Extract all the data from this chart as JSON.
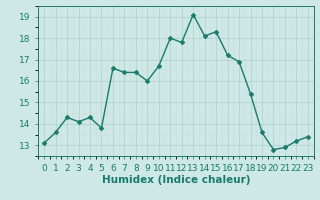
{
  "x": [
    0,
    1,
    2,
    3,
    4,
    5,
    6,
    7,
    8,
    9,
    10,
    11,
    12,
    13,
    14,
    15,
    16,
    17,
    18,
    19,
    20,
    21,
    22,
    23
  ],
  "y": [
    13.1,
    13.6,
    14.3,
    14.1,
    14.3,
    13.8,
    16.6,
    16.4,
    16.4,
    16.0,
    16.7,
    18.0,
    17.8,
    19.1,
    18.1,
    18.3,
    17.2,
    16.9,
    15.4,
    13.6,
    12.8,
    12.9,
    13.2,
    13.4
  ],
  "line_color": "#1a7a6e",
  "marker_color": "#1a7a6e",
  "bg_color": "#cde8e5",
  "grid_color_major": "#b0cfcc",
  "grid_color_minor": "#c8e0dd",
  "xlabel": "Humidex (Indice chaleur)",
  "ylim": [
    12.5,
    19.5
  ],
  "yticks": [
    13,
    14,
    15,
    16,
    17,
    18,
    19
  ],
  "xticks": [
    0,
    1,
    2,
    3,
    4,
    5,
    6,
    7,
    8,
    9,
    10,
    11,
    12,
    13,
    14,
    15,
    16,
    17,
    18,
    19,
    20,
    21,
    22,
    23
  ],
  "xtick_labels": [
    "0",
    "1",
    "2",
    "3",
    "4",
    "5",
    "6",
    "7",
    "8",
    "9",
    "10",
    "11",
    "12",
    "13",
    "14",
    "15",
    "16",
    "17",
    "18",
    "19",
    "20",
    "21",
    "22",
    "23"
  ],
  "tick_color": "#1a7a6e",
  "axis_color": "#1a7a6e",
  "font_color": "#1a7a6e",
  "xlabel_fontsize": 7.5,
  "tick_fontsize": 6.5,
  "linewidth": 1.0,
  "markersize": 2.5
}
